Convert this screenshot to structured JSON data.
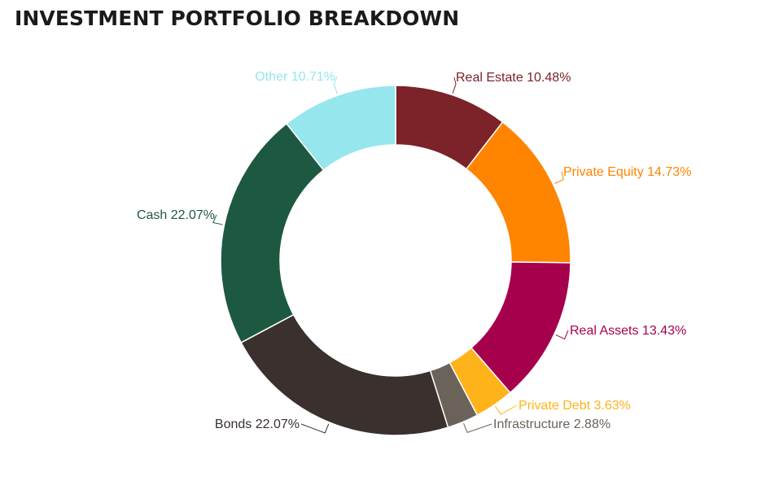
{
  "page": {
    "title": "INVESTMENT PORTFOLIO BREAKDOWN"
  },
  "chart_data": {
    "type": "pie",
    "variant": "donut",
    "title": "INVESTMENT PORTFOLIO BREAKDOWN",
    "legend": "none",
    "slices": [
      {
        "label": "Real Estate",
        "value": 10.48,
        "display": "Real Estate 10.48%",
        "color": "#7b2328"
      },
      {
        "label": "Private Equity",
        "value": 14.73,
        "display": "Private Equity 14.73%",
        "color": "#ff8400"
      },
      {
        "label": "Real Assets",
        "value": 13.43,
        "display": "Real Assets 13.43%",
        "color": "#a6004d"
      },
      {
        "label": "Private Debt",
        "value": 3.63,
        "display": "Private Debt 3.63%",
        "color": "#ffb31a"
      },
      {
        "label": "Infrastructure",
        "value": 2.88,
        "display": "Infrastructure 2.88%",
        "color": "#6b625a"
      },
      {
        "label": "Bonds",
        "value": 22.07,
        "display": "Bonds 22.07%",
        "color": "#3a302e"
      },
      {
        "label": "Cash",
        "value": 22.07,
        "display": "Cash 22.07%",
        "color": "#1d5940"
      },
      {
        "label": "Other",
        "value": 10.71,
        "display": "Other 10.71%",
        "color": "#95e6ed"
      }
    ]
  }
}
